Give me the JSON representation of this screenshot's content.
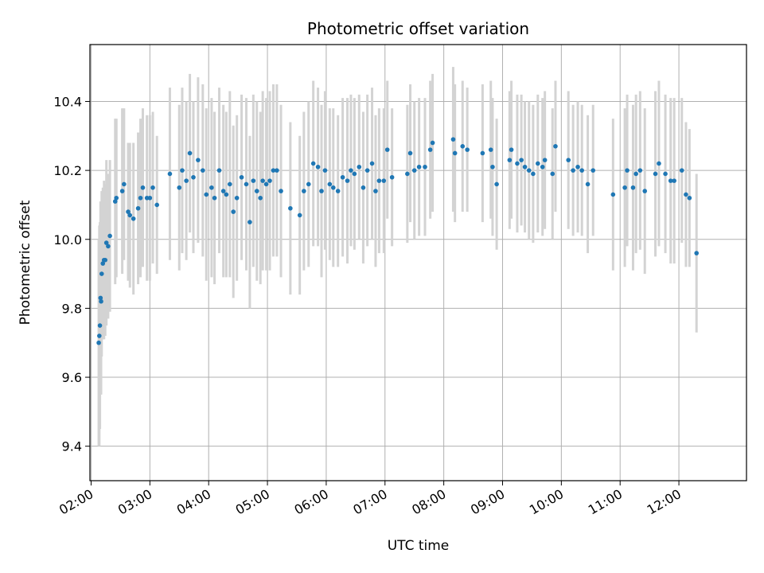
{
  "chart_data": {
    "type": "scatter",
    "title": "Photometric offset variation",
    "xlabel": "UTC time",
    "ylabel": "Photometric offset",
    "x_unit": "hour",
    "xlim": [
      1.98,
      13.15
    ],
    "ylim": [
      9.3,
      10.565
    ],
    "x_ticks": [
      2,
      3,
      4,
      5,
      6,
      7,
      8,
      9,
      10,
      11,
      12
    ],
    "x_tick_labels": [
      "02:00",
      "03:00",
      "04:00",
      "05:00",
      "06:00",
      "07:00",
      "08:00",
      "09:00",
      "10:00",
      "11:00",
      "12:00"
    ],
    "y_ticks": [
      9.4,
      9.6,
      9.8,
      10.0,
      10.2,
      10.4
    ],
    "y_tick_labels": [
      "9.4",
      "9.6",
      "9.8",
      "10.0",
      "10.2",
      "10.4"
    ],
    "grid": true,
    "errorbar_color": "#d3d3d3",
    "point_color": "#1f77b4",
    "series": [
      {
        "points": [
          [
            2.13,
            9.7,
            0.3
          ],
          [
            2.14,
            9.72,
            0.32
          ],
          [
            2.15,
            9.75,
            0.3
          ],
          [
            2.16,
            9.83,
            0.28
          ],
          [
            2.17,
            9.82,
            0.27
          ],
          [
            2.18,
            9.9,
            0.24
          ],
          [
            2.2,
            9.93,
            0.22
          ],
          [
            2.22,
            9.94,
            0.23
          ],
          [
            2.24,
            9.94,
            0.22
          ],
          [
            2.26,
            9.99,
            0.24
          ],
          [
            2.29,
            9.98,
            0.21
          ],
          [
            2.32,
            10.01,
            0.22
          ],
          [
            2.41,
            10.11,
            0.24
          ],
          [
            2.43,
            10.12,
            0.23
          ],
          [
            2.53,
            10.14,
            0.24
          ],
          [
            2.56,
            10.16,
            0.22
          ],
          [
            2.63,
            10.08,
            0.2
          ],
          [
            2.66,
            10.07,
            0.21
          ],
          [
            2.72,
            10.06,
            0.22
          ],
          [
            2.8,
            10.09,
            0.22
          ],
          [
            2.84,
            10.12,
            0.23
          ],
          [
            2.88,
            10.15,
            0.23
          ],
          [
            2.95,
            10.12,
            0.24
          ],
          [
            3.0,
            10.12,
            0.24
          ],
          [
            3.05,
            10.15,
            0.22
          ],
          [
            3.12,
            10.1,
            0.2
          ],
          [
            3.34,
            10.19,
            0.25
          ],
          [
            3.5,
            10.15,
            0.24
          ],
          [
            3.55,
            10.2,
            0.24
          ],
          [
            3.62,
            10.17,
            0.23
          ],
          [
            3.68,
            10.25,
            0.23
          ],
          [
            3.74,
            10.18,
            0.22
          ],
          [
            3.82,
            10.23,
            0.24
          ],
          [
            3.9,
            10.2,
            0.25
          ],
          [
            3.96,
            10.13,
            0.25
          ],
          [
            4.05,
            10.15,
            0.26
          ],
          [
            4.1,
            10.12,
            0.25
          ],
          [
            4.18,
            10.2,
            0.24
          ],
          [
            4.25,
            10.14,
            0.25
          ],
          [
            4.3,
            10.13,
            0.24
          ],
          [
            4.36,
            10.16,
            0.27
          ],
          [
            4.42,
            10.08,
            0.25
          ],
          [
            4.48,
            10.12,
            0.24
          ],
          [
            4.56,
            10.18,
            0.24
          ],
          [
            4.64,
            10.16,
            0.25
          ],
          [
            4.7,
            10.05,
            0.25
          ],
          [
            4.76,
            10.17,
            0.25
          ],
          [
            4.82,
            10.14,
            0.26
          ],
          [
            4.88,
            10.12,
            0.25
          ],
          [
            4.92,
            10.17,
            0.26
          ],
          [
            4.98,
            10.16,
            0.25
          ],
          [
            5.04,
            10.17,
            0.26
          ],
          [
            5.1,
            10.2,
            0.25
          ],
          [
            5.16,
            10.2,
            0.25
          ],
          [
            5.23,
            10.14,
            0.25
          ],
          [
            5.39,
            10.09,
            0.25
          ],
          [
            5.55,
            10.07,
            0.23
          ],
          [
            5.62,
            10.14,
            0.23
          ],
          [
            5.7,
            10.16,
            0.24
          ],
          [
            5.78,
            10.22,
            0.24
          ],
          [
            5.86,
            10.21,
            0.23
          ],
          [
            5.92,
            10.14,
            0.25
          ],
          [
            5.98,
            10.2,
            0.23
          ],
          [
            6.06,
            10.16,
            0.22
          ],
          [
            6.12,
            10.15,
            0.23
          ],
          [
            6.2,
            10.14,
            0.22
          ],
          [
            6.28,
            10.18,
            0.23
          ],
          [
            6.36,
            10.17,
            0.24
          ],
          [
            6.42,
            10.2,
            0.22
          ],
          [
            6.48,
            10.19,
            0.22
          ],
          [
            6.56,
            10.21,
            0.21
          ],
          [
            6.63,
            10.15,
            0.22
          ],
          [
            6.7,
            10.2,
            0.22
          ],
          [
            6.78,
            10.22,
            0.22
          ],
          [
            6.84,
            10.14,
            0.22
          ],
          [
            6.9,
            10.17,
            0.21
          ],
          [
            6.98,
            10.17,
            0.21
          ],
          [
            7.04,
            10.26,
            0.2
          ],
          [
            7.12,
            10.18,
            0.2
          ],
          [
            7.38,
            10.19,
            0.2
          ],
          [
            7.43,
            10.25,
            0.2
          ],
          [
            7.5,
            10.2,
            0.2
          ],
          [
            7.58,
            10.21,
            0.2
          ],
          [
            7.68,
            10.21,
            0.2
          ],
          [
            7.77,
            10.26,
            0.2
          ],
          [
            7.81,
            10.28,
            0.2
          ],
          [
            8.16,
            10.29,
            0.21
          ],
          [
            8.19,
            10.25,
            0.2
          ],
          [
            8.32,
            10.27,
            0.19
          ],
          [
            8.4,
            10.26,
            0.18
          ],
          [
            8.66,
            10.25,
            0.2
          ],
          [
            8.8,
            10.26,
            0.2
          ],
          [
            8.83,
            10.21,
            0.2
          ],
          [
            8.9,
            10.16,
            0.19
          ],
          [
            9.12,
            10.23,
            0.2
          ],
          [
            9.15,
            10.26,
            0.2
          ],
          [
            9.25,
            10.22,
            0.2
          ],
          [
            9.32,
            10.23,
            0.19
          ],
          [
            9.38,
            10.21,
            0.19
          ],
          [
            9.45,
            10.2,
            0.2
          ],
          [
            9.52,
            10.19,
            0.2
          ],
          [
            9.6,
            10.22,
            0.2
          ],
          [
            9.68,
            10.21,
            0.2
          ],
          [
            9.72,
            10.23,
            0.2
          ],
          [
            9.85,
            10.19,
            0.19
          ],
          [
            9.9,
            10.27,
            0.19
          ],
          [
            10.12,
            10.23,
            0.2
          ],
          [
            10.2,
            10.2,
            0.19
          ],
          [
            10.28,
            10.21,
            0.19
          ],
          [
            10.35,
            10.2,
            0.19
          ],
          [
            10.45,
            10.16,
            0.2
          ],
          [
            10.54,
            10.2,
            0.19
          ],
          [
            10.88,
            10.13,
            0.22
          ],
          [
            11.08,
            10.15,
            0.23
          ],
          [
            11.12,
            10.2,
            0.22
          ],
          [
            11.22,
            10.15,
            0.24
          ],
          [
            11.27,
            10.19,
            0.23
          ],
          [
            11.34,
            10.2,
            0.23
          ],
          [
            11.42,
            10.14,
            0.24
          ],
          [
            11.6,
            10.19,
            0.24
          ],
          [
            11.66,
            10.22,
            0.24
          ],
          [
            11.77,
            10.19,
            0.23
          ],
          [
            11.86,
            10.17,
            0.24
          ],
          [
            11.92,
            10.17,
            0.24
          ],
          [
            12.05,
            10.2,
            0.21
          ],
          [
            12.12,
            10.13,
            0.21
          ],
          [
            12.18,
            10.12,
            0.2
          ],
          [
            12.3,
            9.96,
            0.23
          ]
        ]
      }
    ]
  }
}
